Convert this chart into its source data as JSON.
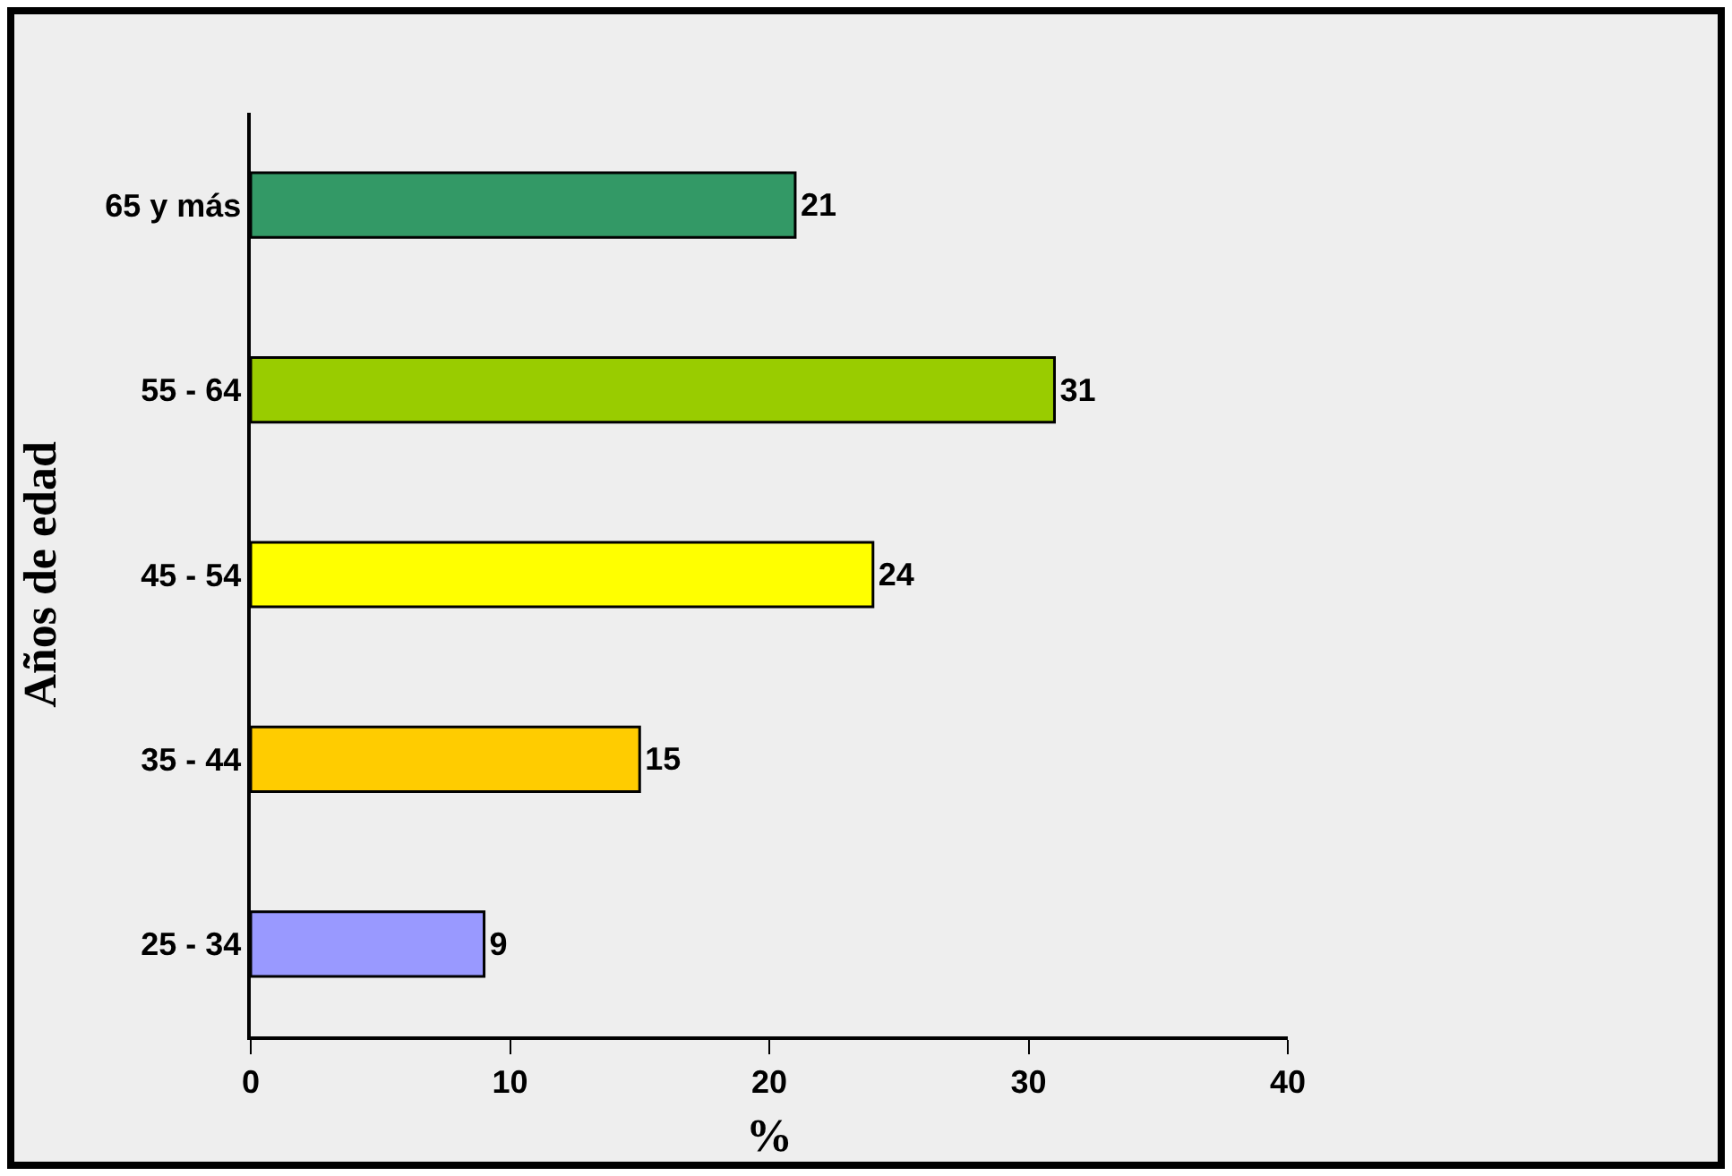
{
  "chart_data": {
    "type": "bar",
    "orientation": "horizontal",
    "categories": [
      "65 y más",
      "55 - 64",
      "45 - 54",
      "35 - 44",
      "25 - 34"
    ],
    "values": [
      21,
      31,
      24,
      15,
      9
    ],
    "colors": [
      "#339966",
      "#99cc00",
      "#ffff00",
      "#ffcc00",
      "#9999ff"
    ],
    "xlim": [
      0,
      40
    ],
    "xticks": [
      0,
      10,
      20,
      30,
      40
    ],
    "xlabel": "%",
    "ylabel": "Años de edad",
    "data_labels": true
  }
}
